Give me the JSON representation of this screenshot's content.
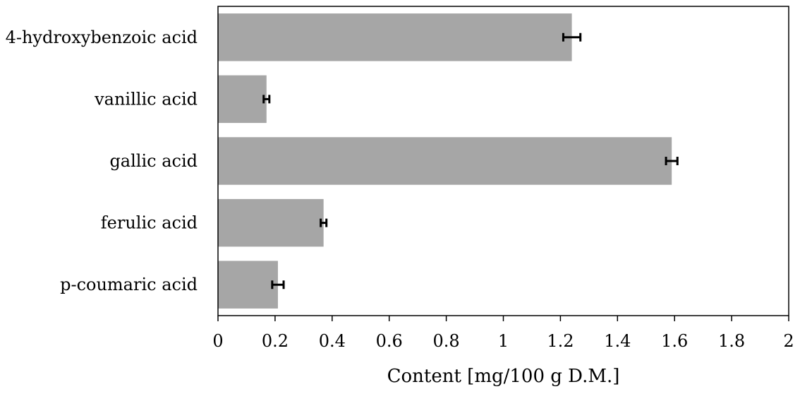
{
  "chart_data": {
    "type": "bar",
    "orientation": "horizontal",
    "categories": [
      "4-hydroxybenzoic acid",
      "vanillic acid",
      "gallic acid",
      "ferulic acid",
      "p-coumaric acid"
    ],
    "values": [
      1.24,
      0.17,
      1.59,
      0.37,
      0.21
    ],
    "errors": [
      0.03,
      0.01,
      0.02,
      0.01,
      0.02
    ],
    "xlabel": "Content [mg/100 g D.M.]",
    "ylabel": "",
    "xlim": [
      0,
      2
    ],
    "xticks": [
      "0",
      "0.2",
      "0.4",
      "0.6",
      "0.8",
      "1",
      "1.2",
      "1.4",
      "1.6",
      "1.8",
      "2"
    ],
    "bar_color": "#a6a6a6",
    "error_bar_color": "#000000",
    "grid": false,
    "legend": "none"
  }
}
